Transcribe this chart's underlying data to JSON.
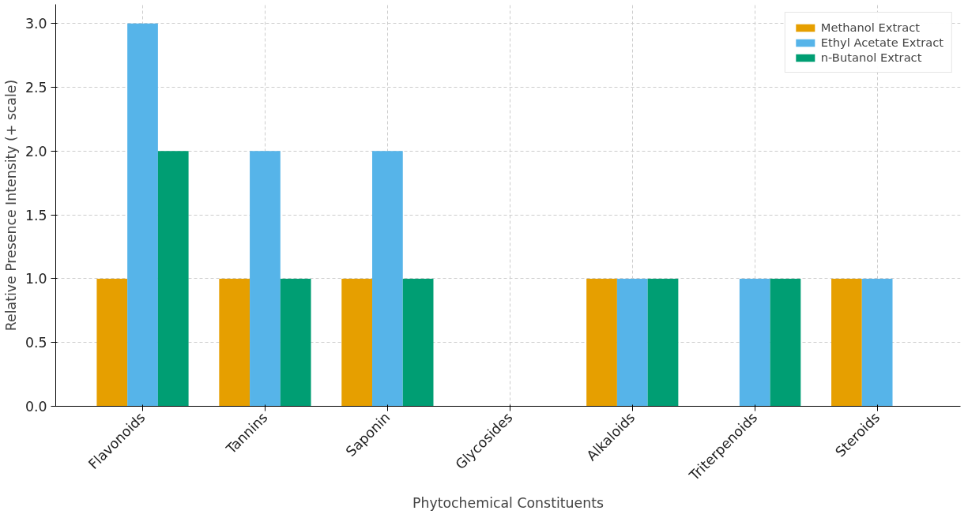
{
  "chart_data": {
    "type": "bar",
    "xlabel": "Phytochemical Constituents",
    "ylabel": "Relative Presence Intensity (+ scale)",
    "categories": [
      "Flavonoids",
      "Tannins",
      "Saponin",
      "Glycosides",
      "Alkaloids",
      "Triterpenoids",
      "Steroids"
    ],
    "series": [
      {
        "name": "Methanol Extract",
        "color": "#e69f00",
        "values": [
          1,
          1,
          1,
          0,
          1,
          0,
          1
        ]
      },
      {
        "name": "Ethyl Acetate Extract",
        "color": "#56b4e9",
        "values": [
          3,
          2,
          2,
          0,
          1,
          1,
          1
        ]
      },
      {
        "name": "n-Butanol Extract",
        "color": "#009e73",
        "values": [
          2,
          1,
          1,
          0,
          1,
          1,
          0
        ]
      }
    ],
    "ylim": [
      0,
      3.15
    ],
    "yticks": [
      {
        "value": 0,
        "label": "0.0"
      },
      {
        "value": 0.5,
        "label": "0.5"
      },
      {
        "value": 1,
        "label": "1.0"
      },
      {
        "value": 1.5,
        "label": "1.5"
      },
      {
        "value": 2,
        "label": "2.0"
      },
      {
        "value": 2.5,
        "label": "2.5"
      },
      {
        "value": 3,
        "label": "3.0"
      }
    ],
    "grid": true,
    "legend": "top right"
  }
}
